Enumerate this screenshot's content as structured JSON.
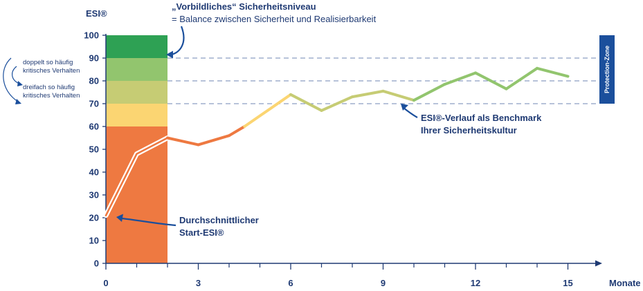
{
  "chart_data": {
    "type": "line",
    "title": "",
    "ylabel": "ESI®",
    "xlabel": "Monate",
    "ylim": [
      0,
      100
    ],
    "xlim": [
      0,
      16
    ],
    "y_ticks": [
      0,
      10,
      20,
      30,
      40,
      50,
      60,
      70,
      80,
      90,
      100
    ],
    "x_ticks": [
      0,
      3,
      6,
      9,
      12,
      15
    ],
    "x_minor_ticks": [
      1,
      2,
      4,
      5,
      7,
      8,
      10,
      11,
      13,
      14
    ],
    "series": [
      {
        "x": [
          0,
          1,
          2,
          3,
          4,
          4.5,
          6,
          7,
          8,
          9,
          10,
          11,
          12,
          13,
          14,
          15
        ],
        "y": [
          21,
          48,
          55,
          52,
          56,
          60,
          74,
          67,
          73,
          75.5,
          71.5,
          78.5,
          83.5,
          76.5,
          85.5,
          82
        ]
      }
    ],
    "bands": [
      {
        "from": 0,
        "to": 60,
        "color": "#ee7941"
      },
      {
        "from": 60,
        "to": 70,
        "color": "#fbd572"
      },
      {
        "from": 70,
        "to": 80,
        "color": "#c6cc74"
      },
      {
        "from": 80,
        "to": 90,
        "color": "#92c56e"
      },
      {
        "from": 90,
        "to": 100,
        "color": "#2ea154"
      }
    ],
    "band_x_range": [
      0,
      2
    ],
    "reference_lines": [
      70,
      80,
      90
    ],
    "segment_colors": {
      "low": "#ee7941",
      "mid": "#fbd572",
      "high": "#92c56e"
    },
    "protection_zone": {
      "label": "Protection-Zone",
      "from": 70,
      "to": 100,
      "color": "#1b4f9c"
    },
    "annotations": {
      "top_title": "„Vorbildliches“ Sicherheitsniveau",
      "top_subtitle": "= Balance zwischen Sicherheit und Realisierbarkeit",
      "start_line1": "Durchschnittlicher",
      "start_line2": "Start-ESI®",
      "benchmark_line1": "ESI®-Verlauf als Benchmark",
      "benchmark_line2": "Ihrer Sicherheitskultur"
    },
    "side_notes": {
      "double_line1": "doppelt so häufig",
      "double_line2": "kritisches Verhalten",
      "triple_line1": "dreifach so häufig",
      "triple_line2": "kritisches Verhalten"
    },
    "colors": {
      "axis": "#1f3a73",
      "grid": "#6f86b3",
      "arrow": "#1b4f9c"
    }
  }
}
